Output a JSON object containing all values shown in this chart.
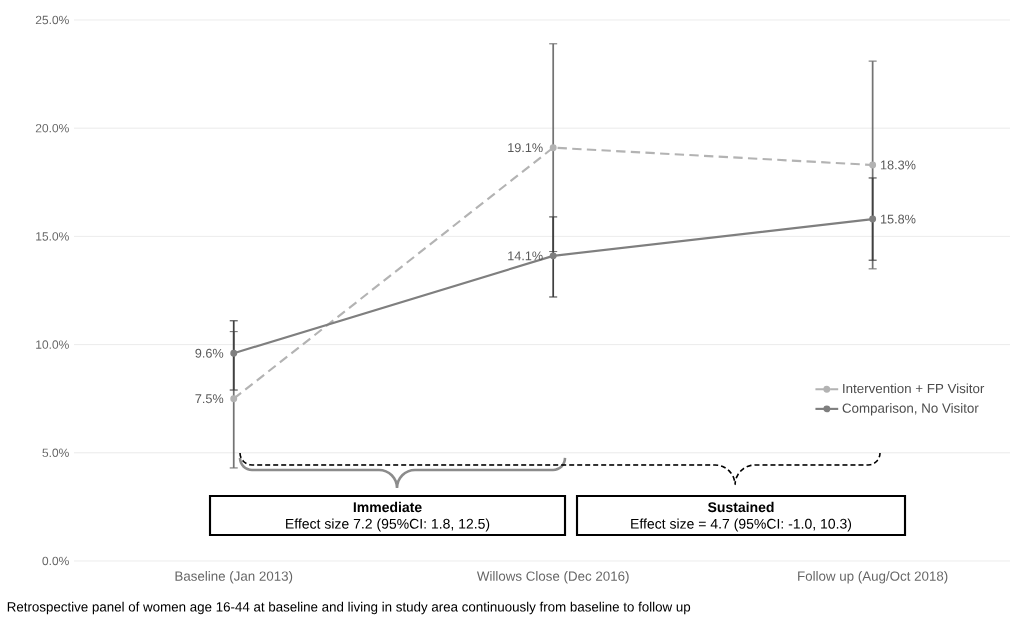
{
  "chart_data": {
    "type": "line",
    "categories": [
      "Baseline (Jan 2013)",
      "Willows Close (Dec 2016)",
      "Follow up (Aug/Oct 2018)"
    ],
    "series": [
      {
        "name": "Intervention + FP Visitor",
        "color": "#b3b3b3",
        "line_style": "dashed",
        "values": [
          7.5,
          19.1,
          18.3
        ],
        "value_labels": [
          "7.5%",
          "19.1%",
          "18.3%"
        ],
        "errors": [
          [
            4.3,
            10.6
          ],
          [
            14.3,
            23.9
          ],
          [
            13.5,
            23.1
          ]
        ]
      },
      {
        "name": "Comparison, No Visitor",
        "color": "#7f7f7f",
        "line_style": "solid",
        "values": [
          9.6,
          14.1,
          15.8
        ],
        "value_labels": [
          "9.6%",
          "14.1%",
          "15.8%"
        ],
        "errors": [
          [
            7.9,
            11.1
          ],
          [
            12.2,
            15.9
          ],
          [
            13.9,
            17.7
          ]
        ]
      }
    ],
    "ylim": [
      0,
      25
    ],
    "yticks": [
      {
        "value": 0,
        "label": "0.0%"
      },
      {
        "value": 5,
        "label": "5.0%"
      },
      {
        "value": 10,
        "label": "10.0%"
      },
      {
        "value": 15,
        "label": "15.0%"
      },
      {
        "value": 20,
        "label": "20.0%"
      },
      {
        "value": 25,
        "label": "25.0%"
      }
    ],
    "grid": "y",
    "legend": "bottom right",
    "marker": "circle",
    "annotations": [
      "Immediate",
      "Effect size 7.2  (95%CI: 1.8, 12.5)",
      "Sustained",
      "Effect size = 4.7 (95%CI: -1.0, 10.3)",
      "Retrospective panel of women age 16-44 at baseline and living in study area continuously from baseline to follow up"
    ]
  }
}
